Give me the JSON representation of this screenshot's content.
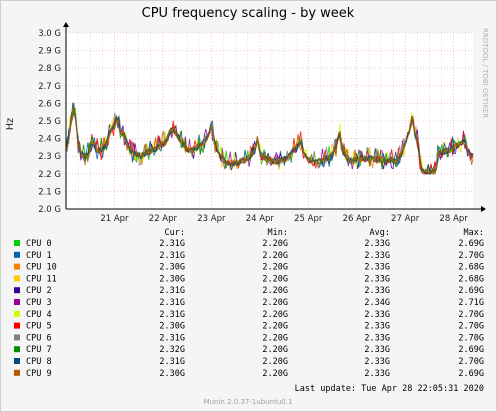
{
  "chart_data": {
    "type": "line",
    "title": "CPU frequency scaling - by week",
    "ylabel": "Hz",
    "side_label": "RRDTOOL / TOBI OETIKER",
    "ylim": [
      2.0,
      3.0
    ],
    "yticks": [
      {
        "v": 2.0,
        "label": "2.0 G"
      },
      {
        "v": 2.1,
        "label": "2.1 G"
      },
      {
        "v": 2.2,
        "label": "2.2 G"
      },
      {
        "v": 2.3,
        "label": "2.3 G"
      },
      {
        "v": 2.4,
        "label": "2.4 G"
      },
      {
        "v": 2.5,
        "label": "2.5 G"
      },
      {
        "v": 2.6,
        "label": "2.6 G"
      },
      {
        "v": 2.7,
        "label": "2.7 G"
      },
      {
        "v": 2.8,
        "label": "2.8 G"
      },
      {
        "v": 2.9,
        "label": "2.9 G"
      },
      {
        "v": 3.0,
        "label": "3.0 G"
      }
    ],
    "xlim": [
      0,
      8.4
    ],
    "xticks": [
      {
        "v": 1,
        "label": "21 Apr"
      },
      {
        "v": 2,
        "label": "22 Apr"
      },
      {
        "v": 3,
        "label": "23 Apr"
      },
      {
        "v": 4,
        "label": "24 Apr"
      },
      {
        "v": 5,
        "label": "25 Apr"
      },
      {
        "v": 6,
        "label": "26 Apr"
      },
      {
        "v": 7,
        "label": "27 Apr"
      },
      {
        "v": 8,
        "label": "28 Apr"
      }
    ],
    "grid": true,
    "profile": [
      [
        0.0,
        2.34
      ],
      [
        0.05,
        2.4
      ],
      [
        0.12,
        2.52
      ],
      [
        0.18,
        2.57
      ],
      [
        0.22,
        2.45
      ],
      [
        0.26,
        2.34
      ],
      [
        0.32,
        2.31
      ],
      [
        0.4,
        2.3
      ],
      [
        0.48,
        2.32
      ],
      [
        0.55,
        2.38
      ],
      [
        0.62,
        2.34
      ],
      [
        0.7,
        2.33
      ],
      [
        0.8,
        2.35
      ],
      [
        0.9,
        2.43
      ],
      [
        0.98,
        2.47
      ],
      [
        1.05,
        2.52
      ],
      [
        1.12,
        2.44
      ],
      [
        1.2,
        2.42
      ],
      [
        1.28,
        2.36
      ],
      [
        1.35,
        2.32
      ],
      [
        1.45,
        2.31
      ],
      [
        1.55,
        2.3
      ],
      [
        1.65,
        2.32
      ],
      [
        1.75,
        2.33
      ],
      [
        1.85,
        2.34
      ],
      [
        1.95,
        2.36
      ],
      [
        2.05,
        2.38
      ],
      [
        2.15,
        2.44
      ],
      [
        2.22,
        2.45
      ],
      [
        2.3,
        2.42
      ],
      [
        2.38,
        2.38
      ],
      [
        2.45,
        2.35
      ],
      [
        2.55,
        2.33
      ],
      [
        2.65,
        2.34
      ],
      [
        2.75,
        2.36
      ],
      [
        2.85,
        2.38
      ],
      [
        2.95,
        2.42
      ],
      [
        3.0,
        2.48
      ],
      [
        3.05,
        2.4
      ],
      [
        3.12,
        2.33
      ],
      [
        3.2,
        2.29
      ],
      [
        3.3,
        2.27
      ],
      [
        3.4,
        2.26
      ],
      [
        3.5,
        2.26
      ],
      [
        3.6,
        2.27
      ],
      [
        3.7,
        2.28
      ],
      [
        3.8,
        2.3
      ],
      [
        3.9,
        2.33
      ],
      [
        3.95,
        2.4
      ],
      [
        4.0,
        2.32
      ],
      [
        4.08,
        2.29
      ],
      [
        4.18,
        2.28
      ],
      [
        4.28,
        2.27
      ],
      [
        4.38,
        2.27
      ],
      [
        4.48,
        2.28
      ],
      [
        4.58,
        2.29
      ],
      [
        4.68,
        2.33
      ],
      [
        4.78,
        2.36
      ],
      [
        4.85,
        2.38
      ],
      [
        4.92,
        2.31
      ],
      [
        5.0,
        2.28
      ],
      [
        5.1,
        2.27
      ],
      [
        5.2,
        2.27
      ],
      [
        5.3,
        2.28
      ],
      [
        5.4,
        2.29
      ],
      [
        5.5,
        2.31
      ],
      [
        5.58,
        2.36
      ],
      [
        5.65,
        2.44
      ],
      [
        5.7,
        2.33
      ],
      [
        5.8,
        2.29
      ],
      [
        5.9,
        2.27
      ],
      [
        6.0,
        2.28
      ],
      [
        6.1,
        2.29
      ],
      [
        6.2,
        2.28
      ],
      [
        6.3,
        2.29
      ],
      [
        6.4,
        2.28
      ],
      [
        6.5,
        2.28
      ],
      [
        6.6,
        2.27
      ],
      [
        6.7,
        2.28
      ],
      [
        6.8,
        2.27
      ],
      [
        6.9,
        2.3
      ],
      [
        6.98,
        2.35
      ],
      [
        7.05,
        2.42
      ],
      [
        7.1,
        2.45
      ],
      [
        7.15,
        2.53
      ],
      [
        7.2,
        2.42
      ],
      [
        7.25,
        2.4
      ],
      [
        7.3,
        2.3
      ],
      [
        7.34,
        2.22
      ],
      [
        7.4,
        2.21
      ],
      [
        7.5,
        2.21
      ],
      [
        7.6,
        2.21
      ],
      [
        7.64,
        2.22
      ],
      [
        7.66,
        2.31
      ],
      [
        7.75,
        2.32
      ],
      [
        7.85,
        2.33
      ],
      [
        7.95,
        2.34
      ],
      [
        8.05,
        2.36
      ],
      [
        8.15,
        2.37
      ],
      [
        8.22,
        2.38
      ],
      [
        8.28,
        2.34
      ],
      [
        8.34,
        2.31
      ],
      [
        8.4,
        2.3
      ]
    ],
    "columns": [
      "Cur:",
      "Min:",
      "Avg:",
      "Max:"
    ],
    "series": [
      {
        "name": "CPU 0",
        "color": "#00cc00",
        "cur": "2.31G",
        "min": "2.20G",
        "avg": "2.33G",
        "max": "2.69G"
      },
      {
        "name": "CPU 1",
        "color": "#0066b3",
        "cur": "2.31G",
        "min": "2.20G",
        "avg": "2.33G",
        "max": "2.70G"
      },
      {
        "name": "CPU 10",
        "color": "#ff8000",
        "cur": "2.30G",
        "min": "2.20G",
        "avg": "2.33G",
        "max": "2.68G"
      },
      {
        "name": "CPU 11",
        "color": "#ffcc00",
        "cur": "2.30G",
        "min": "2.20G",
        "avg": "2.33G",
        "max": "2.68G"
      },
      {
        "name": "CPU 2",
        "color": "#330099",
        "cur": "2.31G",
        "min": "2.20G",
        "avg": "2.33G",
        "max": "2.69G"
      },
      {
        "name": "CPU 3",
        "color": "#990099",
        "cur": "2.31G",
        "min": "2.20G",
        "avg": "2.34G",
        "max": "2.71G"
      },
      {
        "name": "CPU 4",
        "color": "#ccff00",
        "cur": "2.31G",
        "min": "2.20G",
        "avg": "2.33G",
        "max": "2.70G"
      },
      {
        "name": "CPU 5",
        "color": "#ff0000",
        "cur": "2.30G",
        "min": "2.20G",
        "avg": "2.33G",
        "max": "2.70G"
      },
      {
        "name": "CPU 6",
        "color": "#808080",
        "cur": "2.31G",
        "min": "2.20G",
        "avg": "2.33G",
        "max": "2.70G"
      },
      {
        "name": "CPU 7",
        "color": "#008f00",
        "cur": "2.32G",
        "min": "2.20G",
        "avg": "2.33G",
        "max": "2.69G"
      },
      {
        "name": "CPU 8",
        "color": "#00487d",
        "cur": "2.31G",
        "min": "2.20G",
        "avg": "2.33G",
        "max": "2.70G"
      },
      {
        "name": "CPU 9",
        "color": "#b35a00",
        "cur": "2.30G",
        "min": "2.20G",
        "avg": "2.33G",
        "max": "2.69G"
      }
    ],
    "last_update": "Last update: Tue Apr 28 22:05:31 2020",
    "footer": "Munin 2.0.37-1ubuntu0.1"
  }
}
